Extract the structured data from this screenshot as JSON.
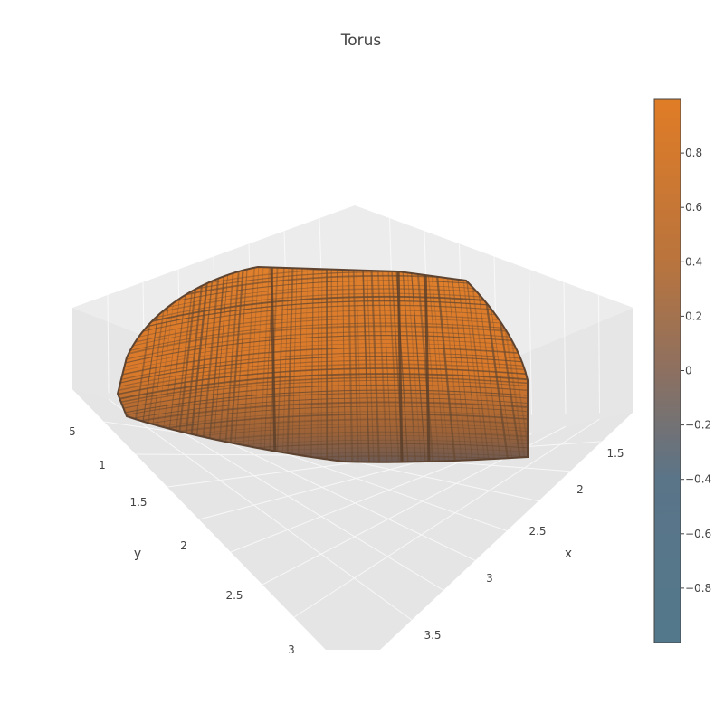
{
  "chart_data": {
    "type": "surface",
    "title": "Torus",
    "scene": {
      "x_axis": {
        "label": "x",
        "ticks": [
          "1.5",
          "2",
          "2.5",
          "3",
          "3.5"
        ]
      },
      "y_axis": {
        "label": "y",
        "ticks": [
          "5",
          "1",
          "1.5",
          "2",
          "2.5",
          "3"
        ]
      },
      "background_color": "#e5e5e5",
      "grid": true
    },
    "colorbar": {
      "range": [
        -1,
        1
      ],
      "ticks": [
        "0.8",
        "0.6",
        "0.4",
        "0.2",
        "0",
        "−0.2",
        "−0.4",
        "−0.6",
        "−0.8"
      ],
      "tick_values": [
        0.8,
        0.6,
        0.4,
        0.2,
        0,
        -0.2,
        -0.4,
        -0.6,
        -0.8
      ],
      "colorscale": [
        "#53788b",
        "#e07c26"
      ]
    },
    "surface_color": "#df7d2a",
    "wire_color": "#6a4a30"
  }
}
